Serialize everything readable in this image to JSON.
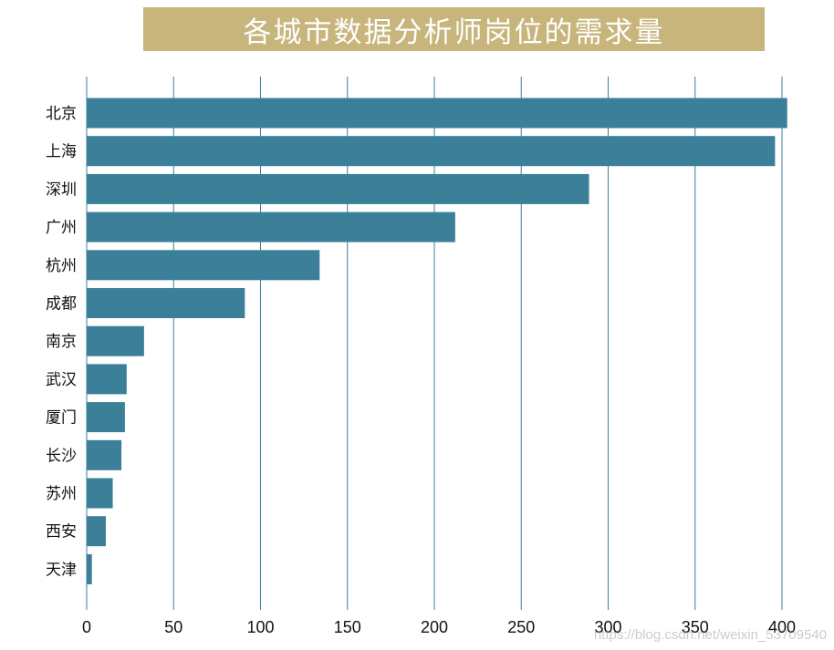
{
  "chart_data": {
    "type": "bar",
    "orientation": "horizontal",
    "title": "各城市数据分析师岗位的需求量",
    "categories": [
      "北京",
      "上海",
      "深圳",
      "广州",
      "杭州",
      "成都",
      "南京",
      "武汉",
      "厦门",
      "长沙",
      "苏州",
      "西安",
      "天津"
    ],
    "values": [
      403,
      396,
      289,
      212,
      134,
      91,
      33,
      23,
      22,
      20,
      15,
      11,
      3
    ],
    "xlabel": "",
    "ylabel": "",
    "xlim": [
      0,
      400
    ],
    "xticks": [
      0,
      50,
      100,
      150,
      200,
      250,
      300,
      350,
      400
    ],
    "grid": "vertical",
    "colors": {
      "bar": "#3b7f99",
      "grid": "#3b7f99",
      "title_background": "#c7b57c",
      "title_text": "#ffffff"
    }
  },
  "watermark": "https://blog.csdn.net/weixin_53709540"
}
